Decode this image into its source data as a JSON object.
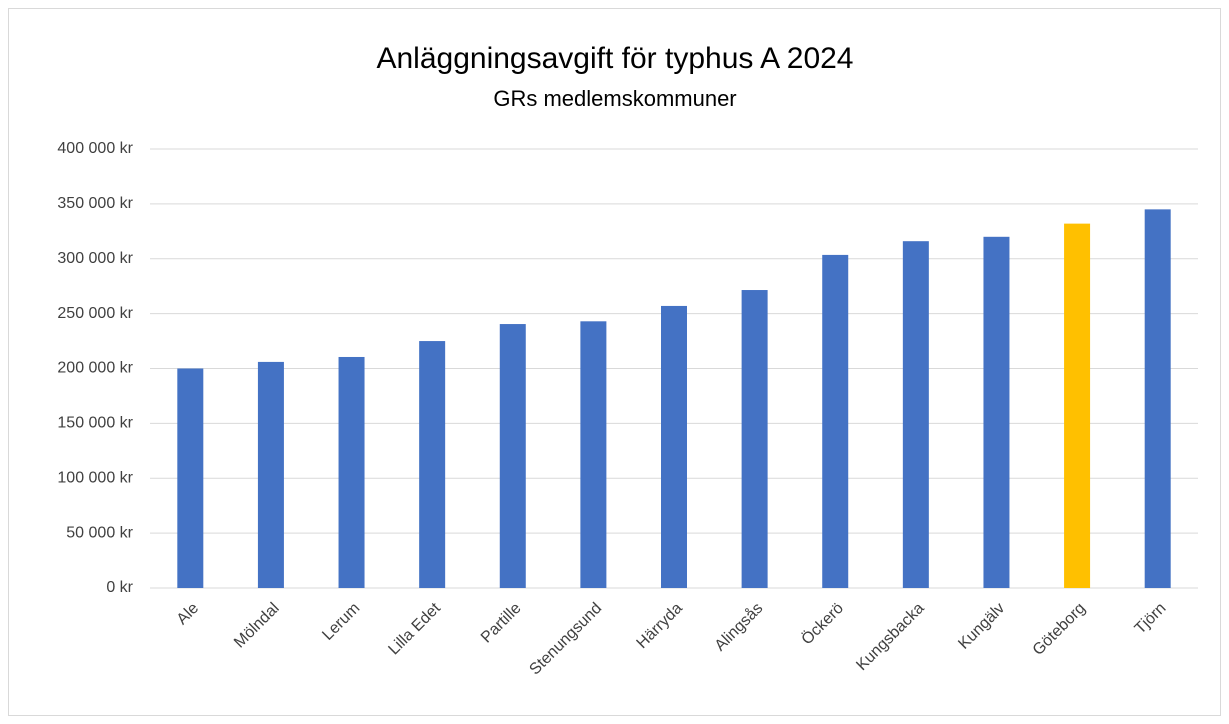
{
  "chart_data": {
    "type": "bar",
    "title": "Anläggningsavgift för typhus A 2024",
    "subtitle": "GRs medlemskommuner",
    "categories": [
      "Ale",
      "Mölndal",
      "Lerum",
      "Lilla Edet",
      "Partille",
      "Stenungsund",
      "Härryda",
      "Alingsås",
      "Öckerö",
      "Kungsbacka",
      "Kungälv",
      "Göteborg",
      "Tjörn"
    ],
    "values": [
      200000,
      206000,
      210500,
      225000,
      240500,
      243000,
      257000,
      271500,
      303500,
      316000,
      320000,
      332000,
      345000
    ],
    "colors": [
      "#4472c4",
      "#4472c4",
      "#4472c4",
      "#4472c4",
      "#4472c4",
      "#4472c4",
      "#4472c4",
      "#4472c4",
      "#4472c4",
      "#4472c4",
      "#4472c4",
      "#ffc000",
      "#4472c4"
    ],
    "ylim": [
      0,
      400000
    ],
    "yticks": [
      {
        "value": 0,
        "label": "0 kr"
      },
      {
        "value": 50000,
        "label": "50 000 kr"
      },
      {
        "value": 100000,
        "label": "100 000 kr"
      },
      {
        "value": 150000,
        "label": "150 000 kr"
      },
      {
        "value": 200000,
        "label": "200 000 kr"
      },
      {
        "value": 250000,
        "label": "250 000 kr"
      },
      {
        "value": 300000,
        "label": "300 000 kr"
      },
      {
        "value": 350000,
        "label": "350 000 kr"
      },
      {
        "value": 400000,
        "label": "400 000 kr"
      }
    ],
    "grid": true
  }
}
